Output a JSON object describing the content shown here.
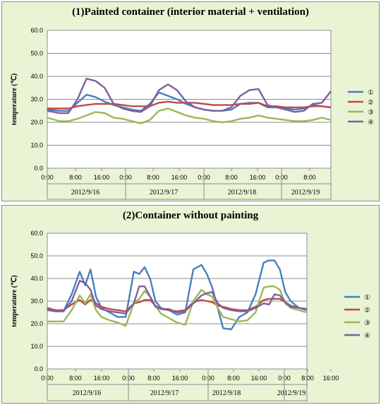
{
  "chart_data": [
    {
      "type": "line",
      "title": "(1)Painted container (interior material + ventilation)",
      "ylabel": "temperature (℃)",
      "ylim": [
        0,
        60
      ],
      "yticks": [
        "0.0",
        "10.0",
        "20.0",
        "30.0",
        "40.0",
        "50.0",
        "60.0"
      ],
      "xtick_labels": [
        "0:00",
        "8:00",
        "16:00",
        "0:00",
        "8:00",
        "16:00",
        "0:00",
        "8:00",
        "16:00",
        "0:00",
        "8:00"
      ],
      "date_labels": [
        "2012/9/16",
        "2012/9/17",
        "2012/9/18",
        "2012/9/19"
      ],
      "x_hours_range": [
        0,
        94
      ],
      "x": [
        0,
        4,
        7,
        10,
        13,
        16,
        19,
        22,
        25,
        28,
        31,
        34,
        37,
        40,
        43,
        46,
        49,
        52,
        55,
        58,
        61,
        64,
        67,
        70,
        73,
        76,
        79,
        82,
        85,
        88,
        91,
        94
      ],
      "series": [
        {
          "name": "①",
          "color": "#4a7ebf",
          "values": [
            25.5,
            25.0,
            25.0,
            28.5,
            32.0,
            31.0,
            29.0,
            27.5,
            26.5,
            25.5,
            25.0,
            28.0,
            33.0,
            31.5,
            30.0,
            28.0,
            26.5,
            25.5,
            25.0,
            25.0,
            25.5,
            28.0,
            28.5,
            28.5,
            26.5,
            26.5,
            26.0,
            25.5,
            26.0,
            27.5,
            27.0,
            26.5
          ]
        },
        {
          "name": "②",
          "color": "#be4b48",
          "values": [
            26.0,
            26.0,
            26.0,
            27.0,
            27.5,
            28.0,
            28.0,
            28.0,
            27.5,
            27.0,
            27.0,
            27.0,
            28.5,
            29.0,
            28.5,
            28.5,
            28.5,
            28.0,
            27.5,
            27.5,
            27.5,
            28.0,
            28.0,
            28.5,
            27.0,
            27.0,
            26.5,
            26.5,
            26.5,
            27.0,
            27.0,
            26.5
          ]
        },
        {
          "name": "③",
          "color": "#98b954",
          "values": [
            22.0,
            20.5,
            20.5,
            21.5,
            23.0,
            24.5,
            24.0,
            22.0,
            21.5,
            20.5,
            19.5,
            21.0,
            25.0,
            26.0,
            24.5,
            23.0,
            22.0,
            21.5,
            20.5,
            20.0,
            20.5,
            21.5,
            22.0,
            23.0,
            22.0,
            21.5,
            21.0,
            20.5,
            20.5,
            21.0,
            22.0,
            21.0
          ]
        },
        {
          "name": "④",
          "color": "#7d60a0",
          "values": [
            25.0,
            24.0,
            24.0,
            30.0,
            39.0,
            38.0,
            35.0,
            28.0,
            26.0,
            25.0,
            24.5,
            27.0,
            34.0,
            36.5,
            34.0,
            29.0,
            26.5,
            25.5,
            25.0,
            25.0,
            26.5,
            31.5,
            34.0,
            34.5,
            27.5,
            26.5,
            25.5,
            24.5,
            25.0,
            28.0,
            28.5,
            33.5
          ]
        }
      ]
    },
    {
      "type": "line",
      "title": "(2)Container without painting",
      "ylabel": "temperature (℃)",
      "ylim": [
        0,
        60
      ],
      "yticks": [
        "0.0",
        "10.0",
        "20.0",
        "30.0",
        "40.0",
        "50.0",
        "60.0"
      ],
      "xtick_labels": [
        "0:00",
        "8:00",
        "16:00",
        "0:00",
        "8:00",
        "16:00",
        "0:00",
        "8:00",
        "16:00",
        "0:00",
        "8:00",
        "16:00"
      ],
      "date_labels": [
        "2012/9/16",
        "2012/9/17",
        "2012/9/18",
        "2012/9/19"
      ],
      "x_hours_range": [
        0,
        96
      ],
      "x": [
        0,
        3,
        6,
        9,
        12,
        14,
        16,
        18,
        20,
        23,
        26,
        29,
        32,
        34,
        36,
        38,
        40,
        42,
        45,
        48,
        51,
        54,
        57,
        59,
        61,
        63,
        65,
        68,
        71,
        74,
        77,
        80,
        82,
        84,
        86,
        88,
        90,
        93,
        96
      ],
      "series": [
        {
          "name": "①",
          "color": "#4a7ebf",
          "values": [
            26.0,
            25.5,
            25.5,
            33.0,
            43.0,
            37.0,
            44.0,
            32.0,
            27.0,
            25.0,
            23.0,
            23.0,
            43.0,
            42.0,
            45.0,
            40.0,
            30.0,
            27.0,
            26.0,
            24.0,
            25.0,
            44.0,
            46.0,
            42.0,
            36.0,
            27.0,
            18.0,
            17.5,
            23.0,
            25.0,
            33.0,
            47.0,
            48.0,
            48.0,
            44.0,
            34.0,
            30.0,
            27.0,
            26.0
          ]
        },
        {
          "name": "②",
          "color": "#be4b48",
          "values": [
            27.0,
            26.0,
            26.0,
            28.5,
            30.5,
            28.5,
            30.5,
            29.0,
            27.5,
            26.5,
            26.0,
            25.5,
            29.0,
            29.5,
            30.5,
            30.5,
            28.0,
            26.5,
            26.0,
            25.5,
            26.0,
            29.5,
            30.5,
            30.0,
            29.5,
            28.0,
            27.5,
            26.5,
            26.0,
            26.0,
            27.5,
            30.5,
            31.0,
            31.0,
            31.0,
            29.5,
            28.0,
            27.0,
            26.5
          ]
        },
        {
          "name": "③",
          "color": "#98b954",
          "values": [
            21.0,
            21.0,
            21.0,
            26.0,
            32.5,
            29.0,
            33.0,
            26.0,
            23.0,
            21.5,
            20.5,
            19.0,
            29.0,
            31.0,
            34.5,
            32.0,
            28.0,
            24.5,
            22.5,
            20.5,
            19.5,
            30.0,
            35.0,
            33.0,
            32.0,
            27.0,
            23.0,
            22.0,
            21.0,
            21.5,
            25.0,
            36.0,
            36.5,
            36.5,
            35.0,
            29.0,
            27.0,
            26.0,
            25.0
          ]
        },
        {
          "name": "④",
          "color": "#7d60a0",
          "values": [
            26.5,
            25.5,
            25.5,
            30.0,
            39.0,
            38.0,
            35.0,
            28.0,
            26.5,
            25.5,
            25.0,
            24.5,
            29.0,
            36.5,
            36.5,
            32.0,
            27.5,
            26.5,
            26.5,
            25.0,
            25.5,
            29.0,
            32.5,
            33.5,
            34.0,
            29.0,
            27.0,
            26.0,
            25.5,
            25.5,
            27.0,
            29.0,
            28.5,
            33.0,
            32.5,
            29.5,
            27.5,
            27.0,
            26.5
          ]
        }
      ]
    }
  ]
}
